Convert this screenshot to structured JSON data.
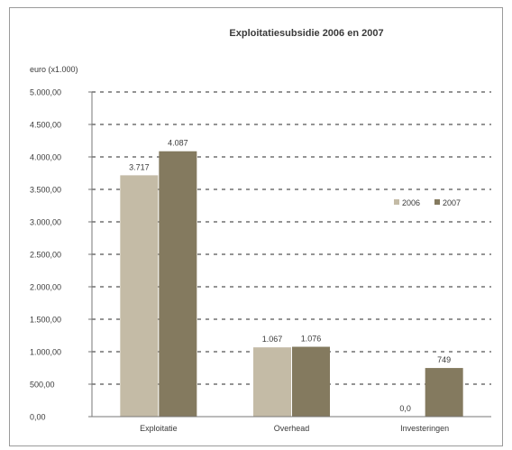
{
  "chart_data": {
    "type": "bar",
    "title": "Exploitatiesubsidie 2006 en 2007",
    "ylabel": "euro (x1.000)",
    "xlabel": "",
    "categories": [
      "Exploitatie",
      "Overhead",
      "Investeringen"
    ],
    "series": [
      {
        "name": "2006",
        "values": [
          3717,
          1067,
          0
        ],
        "labels": [
          "3.717",
          "1.067",
          "0,0"
        ],
        "color": "#c4bba6"
      },
      {
        "name": "2007",
        "values": [
          4087,
          1076,
          749
        ],
        "labels": [
          "4.087",
          "1.076",
          "749"
        ],
        "color": "#847a5f"
      }
    ],
    "ylim": [
      0,
      5000
    ],
    "yticks": [
      0,
      500,
      1000,
      1500,
      2000,
      2500,
      3000,
      3500,
      4000,
      4500,
      5000
    ],
    "ytick_labels": [
      "0,00",
      "500,00",
      "1.000,00",
      "1.500,00",
      "2.000,00",
      "2.500,00",
      "3.000,00",
      "3.500,00",
      "4.000,00",
      "4.500,00",
      "5.000,00"
    ],
    "grid": true,
    "legend_position": "right"
  }
}
